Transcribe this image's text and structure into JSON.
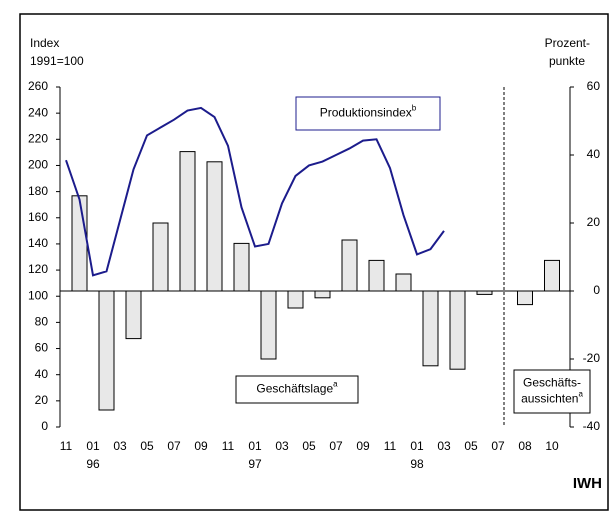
{
  "chart_data": {
    "type": "bar-line",
    "y_title": [
      "Index",
      "1991=100"
    ],
    "y2_title": [
      "Prozent-",
      "punkte"
    ],
    "source": "IWH",
    "categories": [
      "11",
      null,
      "01",
      null,
      "03",
      null,
      "05",
      null,
      "07",
      null,
      "09",
      null,
      "11",
      null,
      "01",
      null,
      "03",
      null,
      "05",
      null,
      "07",
      null,
      "09",
      null,
      "11",
      null,
      "01",
      null,
      "03",
      null,
      "05",
      null,
      "07",
      null,
      "08",
      null,
      "10"
    ],
    "category_years": [
      null,
      null,
      "96",
      null,
      null,
      null,
      null,
      null,
      null,
      null,
      null,
      null,
      null,
      null,
      "97",
      null,
      null,
      null,
      null,
      null,
      null,
      null,
      null,
      null,
      null,
      null,
      "98",
      null,
      null,
      null,
      null,
      null,
      null,
      null,
      null,
      null,
      null
    ],
    "ylim": [
      0,
      260
    ],
    "yticks": [
      0,
      20,
      40,
      60,
      80,
      100,
      120,
      140,
      160,
      180,
      200,
      220,
      240,
      260
    ],
    "y2lim": [
      -40,
      60
    ],
    "y2ticks": [
      -40,
      -20,
      0,
      20,
      40,
      60
    ],
    "series": [
      {
        "name": [
          "Geschäftslage"
        ],
        "footnote": "a",
        "kind": "bar",
        "axis": "y2",
        "color": "#e8e8e8",
        "values": [
          null,
          28,
          null,
          -35,
          null,
          -14,
          null,
          20,
          null,
          41,
          null,
          38,
          null,
          14,
          null,
          -20,
          null,
          -5,
          null,
          -2,
          null,
          15,
          null,
          9,
          null,
          5,
          null,
          -22,
          null,
          -23,
          null,
          -1,
          null,
          null,
          null,
          null,
          null
        ]
      },
      {
        "name": [
          "Produktionsindex"
        ],
        "footnote": "b",
        "kind": "line",
        "axis": "y",
        "color": "#1c1c8c",
        "values": [
          204,
          174,
          116,
          119,
          158,
          197,
          223,
          229,
          235,
          242,
          244,
          237,
          215,
          168,
          138,
          140,
          171,
          192,
          200,
          203,
          208,
          213,
          219,
          220,
          198,
          162,
          132,
          136,
          150,
          null,
          null,
          null,
          null,
          null,
          null,
          null,
          null
        ]
      },
      {
        "name": [
          "Geschäfts-",
          "aussichten"
        ],
        "footnote": "a",
        "kind": "bar",
        "axis": "y2",
        "color": "#e8e8e8",
        "values": [
          null,
          null,
          null,
          null,
          null,
          null,
          null,
          null,
          null,
          null,
          null,
          null,
          null,
          null,
          null,
          null,
          null,
          null,
          null,
          null,
          null,
          null,
          null,
          null,
          null,
          null,
          null,
          null,
          null,
          null,
          null,
          null,
          null,
          null,
          -4,
          null,
          9
        ]
      }
    ]
  }
}
